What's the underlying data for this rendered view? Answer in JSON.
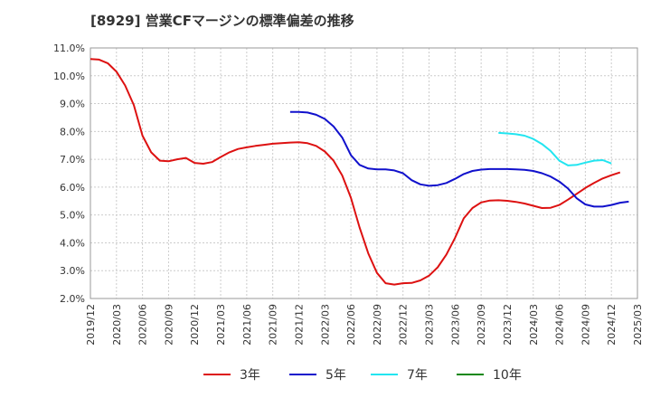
{
  "chart_data": {
    "type": "line",
    "title": "[8929]  営業CFマージンの標準偏差の推移",
    "xlabel": "",
    "ylabel": "",
    "ylim": [
      2.0,
      11.0
    ],
    "yticks": [
      "2.0%",
      "3.0%",
      "4.0%",
      "5.0%",
      "6.0%",
      "7.0%",
      "8.0%",
      "9.0%",
      "10.0%",
      "11.0%"
    ],
    "xticks": [
      "2019/12",
      "2020/03",
      "2020/06",
      "2020/09",
      "2020/12",
      "2021/03",
      "2021/06",
      "2021/09",
      "2021/12",
      "2022/03",
      "2022/06",
      "2022/09",
      "2022/12",
      "2023/03",
      "2023/06",
      "2023/09",
      "2023/12",
      "2024/03",
      "2024/06",
      "2024/09",
      "2024/12",
      "2025/03"
    ],
    "x_start": "2019/12",
    "grid": true,
    "legend_position": "bottom",
    "series": [
      {
        "name": "3年",
        "color": "#dd1111",
        "start_month": "2019/12",
        "values": [
          10.6,
          10.58,
          10.45,
          10.15,
          9.65,
          8.95,
          7.85,
          7.25,
          6.95,
          6.93,
          7.0,
          7.05,
          6.87,
          6.84,
          6.9,
          7.08,
          7.25,
          7.37,
          7.43,
          7.48,
          7.52,
          7.56,
          7.58,
          7.6,
          7.61,
          7.58,
          7.48,
          7.28,
          6.95,
          6.42,
          5.62,
          4.55,
          3.62,
          2.92,
          2.55,
          2.5,
          2.55,
          2.56,
          2.65,
          2.82,
          3.12,
          3.58,
          4.18,
          4.88,
          5.25,
          5.45,
          5.52,
          5.53,
          5.51,
          5.47,
          5.41,
          5.33,
          5.25,
          5.26,
          5.36,
          5.55,
          5.76,
          5.97,
          6.15,
          6.31,
          6.43,
          6.53
        ]
      },
      {
        "name": "5年",
        "color": "#1111cc",
        "start_month": "2021/11",
        "values": [
          8.7,
          8.7,
          8.68,
          8.6,
          8.45,
          8.18,
          7.78,
          7.15,
          6.8,
          6.67,
          6.64,
          6.64,
          6.6,
          6.5,
          6.25,
          6.1,
          6.05,
          6.07,
          6.15,
          6.3,
          6.47,
          6.58,
          6.63,
          6.65,
          6.65,
          6.65,
          6.64,
          6.62,
          6.58,
          6.5,
          6.38,
          6.2,
          5.95,
          5.6,
          5.38,
          5.3,
          5.3,
          5.36,
          5.44,
          5.48
        ]
      },
      {
        "name": "7年",
        "color": "#22e5f0",
        "start_month": "2023/11",
        "values": [
          7.95,
          7.93,
          7.9,
          7.85,
          7.73,
          7.55,
          7.3,
          6.95,
          6.78,
          6.8,
          6.88,
          6.95,
          6.97,
          6.85
        ]
      },
      {
        "name": "10年",
        "color": "#118811",
        "start_month": "2023/11",
        "values": []
      }
    ]
  }
}
